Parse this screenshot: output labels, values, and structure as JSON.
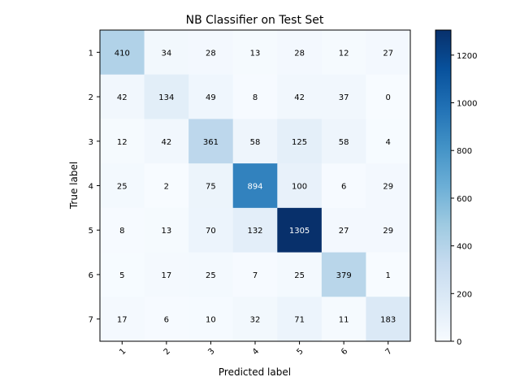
{
  "chart_data": {
    "type": "heatmap",
    "title": "NB Classifier on Test Set",
    "xlabel": "Predicted label",
    "ylabel": "True label",
    "x_categories": [
      "1",
      "2",
      "3",
      "4",
      "5",
      "6",
      "7"
    ],
    "y_categories": [
      "1",
      "2",
      "3",
      "4",
      "5",
      "6",
      "7"
    ],
    "values": [
      [
        410,
        34,
        28,
        13,
        28,
        12,
        27
      ],
      [
        42,
        134,
        49,
        8,
        42,
        37,
        0
      ],
      [
        12,
        42,
        361,
        58,
        125,
        58,
        4
      ],
      [
        25,
        2,
        75,
        894,
        100,
        6,
        29
      ],
      [
        8,
        13,
        70,
        132,
        1305,
        27,
        29
      ],
      [
        5,
        17,
        25,
        7,
        25,
        379,
        1
      ],
      [
        17,
        6,
        10,
        32,
        71,
        11,
        183
      ]
    ],
    "value_range": [
      0,
      1305
    ],
    "colormap": "Blues",
    "colorbar_ticks": [
      "0",
      "200",
      "400",
      "600",
      "800",
      "1000",
      "1200"
    ],
    "x_tick_rotation": "45",
    "text_color_light": "#ffffff",
    "text_color_dark": "#000000"
  }
}
